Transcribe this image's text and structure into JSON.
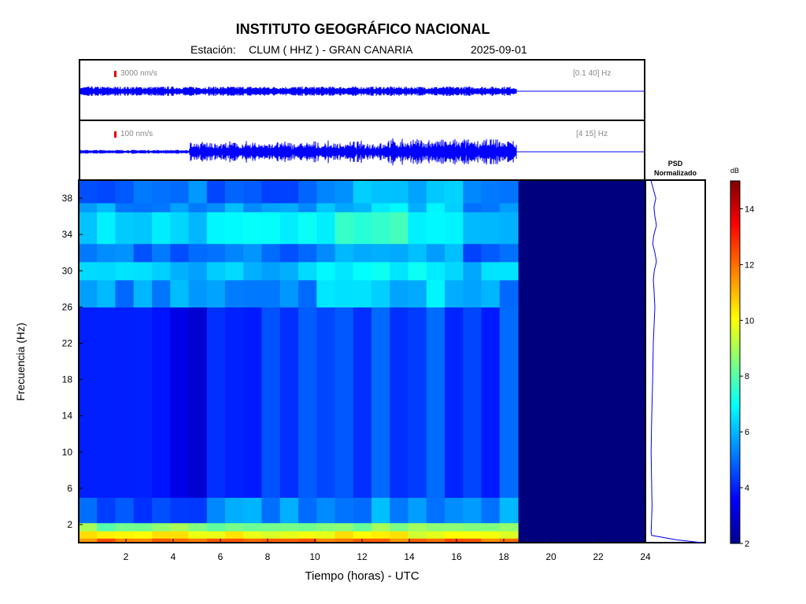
{
  "header": {
    "title": "INSTITUTO GEOGRÁFICO NACIONAL",
    "station_label": "Estación:",
    "station_value": "CLUM ( HHZ ) - GRAN CANARIA",
    "date": "2025-09-01"
  },
  "traces": [
    {
      "scale": "3000 nm/s",
      "band": "[0.1 40] Hz"
    },
    {
      "scale": "100 nm/s",
      "band": "[4 15] Hz"
    }
  ],
  "psd_title": [
    "PSD",
    "Normalizado"
  ],
  "chart_data": [
    {
      "type": "heatmap",
      "xlabel": "Tiempo (horas) - UTC",
      "ylabel": "Frecuencia  (Hz)",
      "xlim": [
        0,
        24
      ],
      "ylim": [
        0,
        40
      ],
      "x_ticks": [
        2,
        4,
        6,
        8,
        10,
        12,
        14,
        16,
        18,
        20,
        22,
        24
      ],
      "y_ticks": [
        2,
        6,
        10,
        14,
        18,
        22,
        26,
        30,
        34,
        38
      ],
      "data_end_hour": 18.6,
      "colormap": [
        "#00008f",
        "#0000ff",
        "#00ffff",
        "#ffff00",
        "#ff0000",
        "#800000"
      ],
      "background_color": "#00007f",
      "bands": [
        {
          "f": [
            0,
            0.5
          ],
          "level_db": 12
        },
        {
          "f": [
            0.5,
            1.3
          ],
          "level_db": 10
        },
        {
          "f": [
            1.3,
            2.2
          ],
          "level_db": 8.5
        },
        {
          "f": [
            2.2,
            5
          ],
          "level_db": 5.5
        },
        {
          "f": [
            5,
            26
          ],
          "level_db": 4.5
        },
        {
          "f": [
            26,
            29
          ],
          "level_db": 5.5
        },
        {
          "f": [
            29,
            31
          ],
          "level_db": 6
        },
        {
          "f": [
            31,
            33
          ],
          "level_db": 5
        },
        {
          "f": [
            33,
            36.5
          ],
          "level_db": 6.5
        },
        {
          "f": [
            36.5,
            37.5
          ],
          "level_db": 5.5
        },
        {
          "f": [
            37.5,
            40
          ],
          "level_db": 5
        }
      ]
    },
    {
      "type": "line",
      "title": "PSD Normalizado",
      "x": [
        0.0,
        0.12,
        0.05,
        0.03,
        0.04,
        0.05,
        0.06,
        0.05,
        0.04,
        0.03,
        0.05,
        0.08,
        0.1,
        0.15,
        0.12,
        0.1,
        0.13,
        0.2,
        0.15,
        0.08,
        0.12,
        0.2,
        0.15,
        0.12,
        0.18,
        0.1,
        0.02
      ],
      "y": [
        0,
        0.3,
        0.8,
        1.2,
        2,
        3,
        4,
        6,
        8,
        10,
        14,
        18,
        22,
        26,
        28,
        29,
        30,
        31,
        32,
        33,
        34,
        35,
        36,
        37,
        38,
        39,
        40
      ]
    },
    {
      "type": "heatmap",
      "title": "colorbar",
      "ylabel": "dB",
      "range": [
        2,
        15
      ],
      "ticks": [
        2,
        4,
        6,
        8,
        10,
        12,
        14
      ]
    }
  ]
}
